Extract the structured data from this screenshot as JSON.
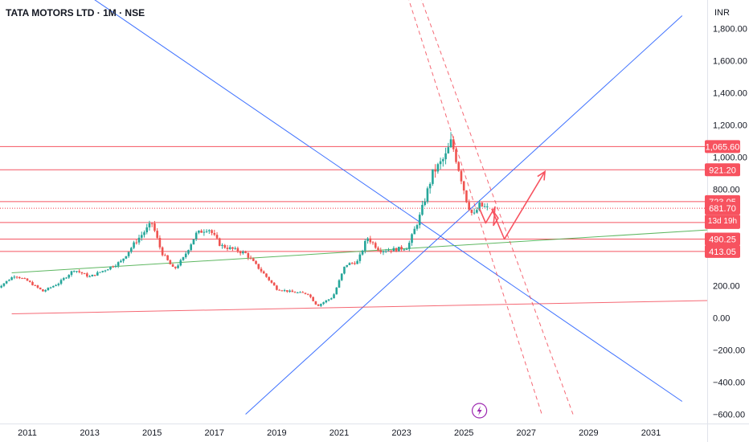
{
  "header": {
    "symbol_title": "TATA MOTORS LTD · 1M · NSE",
    "currency": "INR"
  },
  "colors": {
    "candle_up": "#26a69a",
    "candle_down": "#ef5350",
    "level_line": "#f23645",
    "trend_blue": "#2962ff",
    "trend_green": "#4caf50",
    "arrow": "#f7525f",
    "price_tag": "#f7525f",
    "axis_text": "#131722",
    "lightning_badge": "#9c27b0"
  },
  "icons": {
    "lightning_badge": "lightning-icon"
  },
  "chart_data": {
    "type": "candlestick",
    "title": "TATA MOTORS LTD · 1M · NSE",
    "xlabel": "",
    "ylabel": "",
    "x_range": [
      2010.5,
      2033.5
    ],
    "y_range": [
      -620,
      1920
    ],
    "x_ticks": [
      "2011",
      "2013",
      "2015",
      "2017",
      "2019",
      "2021",
      "2023",
      "2025",
      "2027",
      "2029",
      "2031"
    ],
    "y_ticks": [
      {
        "value": 1800,
        "label": "1,800.00"
      },
      {
        "value": 1600,
        "label": "1,600.00"
      },
      {
        "value": 1400,
        "label": "1,400.00"
      },
      {
        "value": 1200,
        "label": "1,200.00"
      },
      {
        "value": 1000,
        "label": "1,000.00"
      },
      {
        "value": 800,
        "label": "800.00"
      },
      {
        "value": 200,
        "label": "200.00"
      },
      {
        "value": 0,
        "label": "0.00"
      },
      {
        "value": -200,
        "label": "−200.00"
      },
      {
        "value": -400,
        "label": "−400.00"
      },
      {
        "value": -600,
        "label": "−600.00"
      }
    ],
    "price_levels": [
      {
        "value": 1065.6,
        "label": "1,065.60"
      },
      {
        "value": 921.2,
        "label": "921.20"
      },
      {
        "value": 723.05,
        "label": "723.05"
      },
      {
        "value": 593.0,
        "label": "593.00"
      },
      {
        "value": 490.25,
        "label": "490.25"
      },
      {
        "value": 413.05,
        "label": "413.05"
      }
    ],
    "last_price": {
      "value": 681.7,
      "label": "681.70",
      "countdown": "13d 19h"
    },
    "series": [
      {
        "kind": "ohlc_path",
        "values": [
          [
            2010.0,
            180
          ],
          [
            2010.6,
            265
          ],
          [
            2011.0,
            230
          ],
          [
            2011.5,
            165
          ],
          [
            2012.0,
            215
          ],
          [
            2012.5,
            300
          ],
          [
            2013.0,
            255
          ],
          [
            2013.5,
            300
          ],
          [
            2014.0,
            350
          ],
          [
            2014.5,
            480
          ],
          [
            2015.0,
            590
          ],
          [
            2015.3,
            410
          ],
          [
            2015.7,
            300
          ],
          [
            2016.0,
            370
          ],
          [
            2016.4,
            520
          ],
          [
            2016.8,
            560
          ],
          [
            2017.2,
            450
          ],
          [
            2017.7,
            420
          ],
          [
            2018.0,
            400
          ],
          [
            2018.6,
            270
          ],
          [
            2019.0,
            180
          ],
          [
            2019.5,
            160
          ],
          [
            2020.0,
            150
          ],
          [
            2020.3,
            75
          ],
          [
            2020.8,
            130
          ],
          [
            2021.2,
            330
          ],
          [
            2021.6,
            350
          ],
          [
            2021.9,
            500
          ],
          [
            2022.3,
            420
          ],
          [
            2022.8,
            425
          ],
          [
            2023.2,
            440
          ],
          [
            2023.6,
            640
          ],
          [
            2024.0,
            900
          ],
          [
            2024.4,
            1000
          ],
          [
            2024.6,
            1100
          ],
          [
            2024.9,
            880
          ],
          [
            2025.1,
            720
          ],
          [
            2025.3,
            630
          ],
          [
            2025.5,
            700
          ],
          [
            2025.75,
            681.7
          ]
        ]
      }
    ],
    "drawings": [
      {
        "kind": "trendline",
        "color": "blue",
        "from": [
          2018.0,
          -600
        ],
        "to": [
          2032.0,
          1880
        ]
      },
      {
        "kind": "trendline",
        "color": "blue",
        "from": [
          2013.0,
          2000
        ],
        "to": [
          2032.0,
          -520
        ]
      },
      {
        "kind": "trendline",
        "color": "green",
        "from": [
          2010.5,
          280
        ],
        "to": [
          2033.5,
          555
        ]
      },
      {
        "kind": "trendline",
        "color": "red",
        "from": [
          2010.5,
          25
        ],
        "to": [
          2033.5,
          110
        ]
      },
      {
        "kind": "dashed",
        "color": "red",
        "from": [
          2023.2,
          2000
        ],
        "to": [
          2027.5,
          -600
        ]
      },
      {
        "kind": "dashed",
        "color": "red",
        "from": [
          2023.6,
          2000
        ],
        "to": [
          2028.5,
          -600
        ]
      },
      {
        "kind": "projection",
        "points": [
          [
            2025.5,
            680
          ],
          [
            2025.7,
            590
          ],
          [
            2026.0,
            690
          ],
          [
            2025.95,
            575
          ],
          [
            2026.1,
            620
          ],
          [
            2025.9,
            675
          ],
          [
            2026.3,
            490
          ],
          [
            2027.6,
            910
          ]
        ]
      }
    ]
  }
}
